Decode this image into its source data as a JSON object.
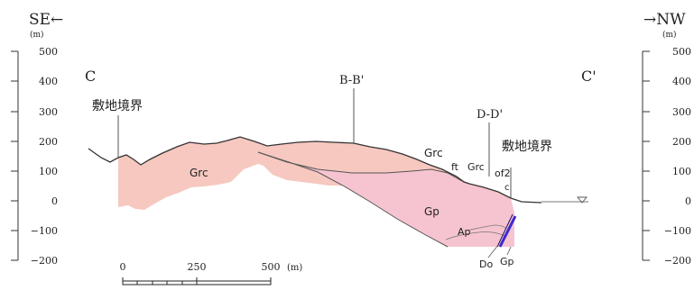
{
  "direction": {
    "left": "SE←",
    "right": "→NW"
  },
  "axis": {
    "unit": "(m)",
    "ticks": [
      "500",
      "400",
      "300",
      "200",
      "100",
      "0",
      "−100",
      "−200"
    ]
  },
  "section": {
    "left_end": "C",
    "right_end": "C'"
  },
  "annotations": {
    "boundary_left": "敷地境界",
    "boundary_right": "敷地境界",
    "cross_bb": "B-B'",
    "cross_dd": "D-D'"
  },
  "units": {
    "grc_main": "Grc",
    "grc_upper": "Grc",
    "grc_right": "Grc",
    "gp": "Gp",
    "ap": "Ap",
    "ft": "ft",
    "of2": "of2",
    "c": "c",
    "do": "Do",
    "gp_bottom": "Gp"
  },
  "scale": {
    "labels": [
      "0",
      "250",
      "500"
    ],
    "unit": "(m)"
  },
  "colors": {
    "grc_fill": "#f6c8c0",
    "gp_fill": "#f6c4d0",
    "outline": "#555555",
    "dyke_blue": "#3b2ad0"
  }
}
